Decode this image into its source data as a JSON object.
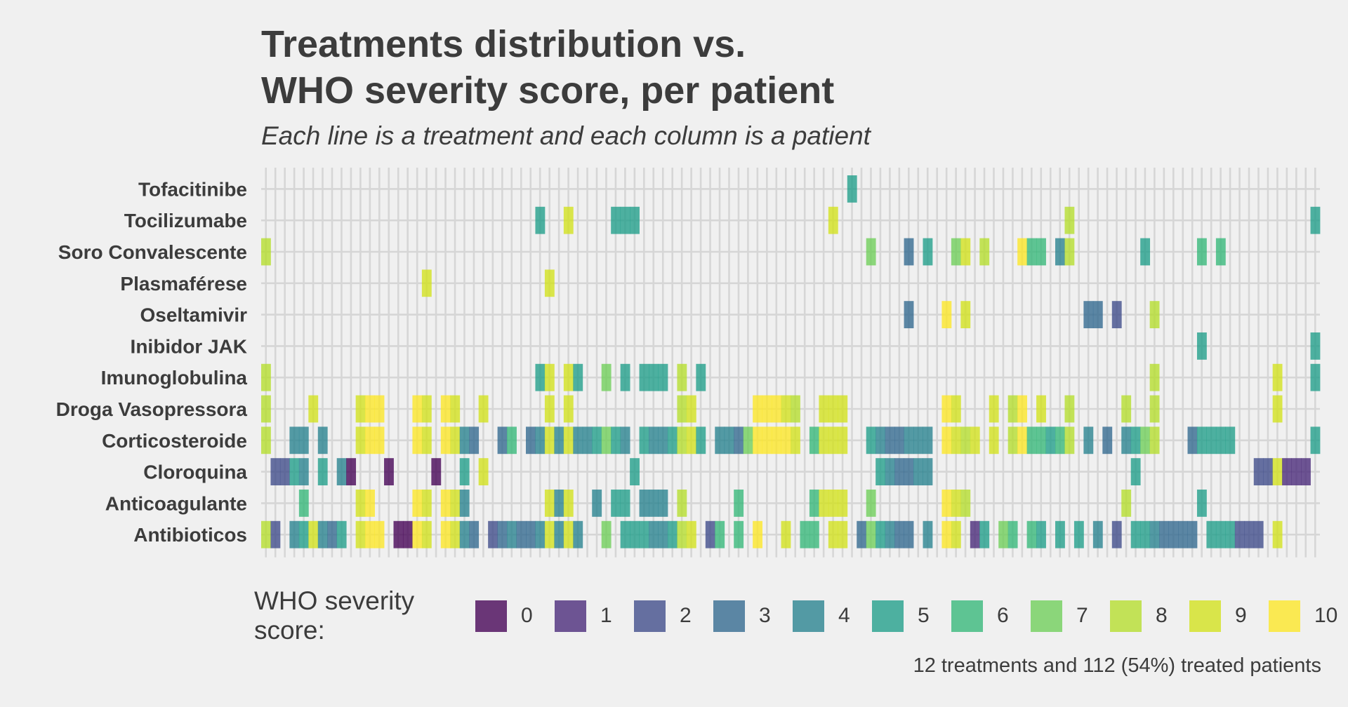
{
  "title_lines": [
    "Treatments distribution vs.",
    "WHO severity score, per patient"
  ],
  "subtitle": "Each line is a treatment and each column is a patient",
  "caption": "12 treatments and 112 (54%) treated patients",
  "legend": {
    "title": "WHO severity score:",
    "items": [
      {
        "label": "0",
        "color": "#440154"
      },
      {
        "label": "1",
        "color": "#482878"
      },
      {
        "label": "2",
        "color": "#3e4a89"
      },
      {
        "label": "3",
        "color": "#31688e"
      },
      {
        "label": "4",
        "color": "#26828e"
      },
      {
        "label": "5",
        "color": "#1f9e89"
      },
      {
        "label": "6",
        "color": "#35b779"
      },
      {
        "label": "7",
        "color": "#6ece58"
      },
      {
        "label": "8",
        "color": "#b5de2b"
      },
      {
        "label": "9",
        "color": "#d2e21b"
      },
      {
        "label": "10",
        "color": "#fde725"
      }
    ]
  },
  "chart_data": {
    "type": "heatmap",
    "title": "Treatments distribution vs. WHO severity score, per patient",
    "subtitle": "Each line is a treatment and each column is a patient",
    "patients": 112,
    "treatments": [
      "Tofacitinibe",
      "Tocilizumabe",
      "Soro Convalescente",
      "Plasmaférese",
      "Oseltamivir",
      "Inibidor JAK",
      "Imunoglobulina",
      "Droga Vasopressora",
      "Corticosteroide",
      "Cloroquina",
      "Anticoagulante",
      "Antibioticos"
    ],
    "color_scale": "WHO severity score 0-10",
    "cells": {
      "Tofacitinibe": [
        [
          62,
          5
        ]
      ],
      "Tocilizumabe": [
        [
          29,
          5
        ],
        [
          32,
          9
        ],
        [
          37,
          5
        ],
        [
          38,
          5
        ],
        [
          39,
          5
        ],
        [
          60,
          9
        ],
        [
          85,
          8
        ],
        [
          111,
          5
        ]
      ],
      "Soro Convalescente": [
        [
          0,
          8
        ],
        [
          64,
          7
        ],
        [
          68,
          3
        ],
        [
          70,
          5
        ],
        [
          73,
          7
        ],
        [
          74,
          9
        ],
        [
          76,
          8
        ],
        [
          80,
          10
        ],
        [
          81,
          6
        ],
        [
          82,
          6
        ],
        [
          84,
          4
        ],
        [
          85,
          8
        ],
        [
          93,
          5
        ],
        [
          99,
          6
        ],
        [
          101,
          6
        ]
      ],
      "Plasmaférese": [
        [
          17,
          9
        ],
        [
          30,
          9
        ]
      ],
      "Oseltamivir": [
        [
          68,
          3
        ],
        [
          72,
          10
        ],
        [
          74,
          9
        ],
        [
          87,
          3
        ],
        [
          88,
          3
        ],
        [
          90,
          2
        ],
        [
          94,
          8
        ]
      ],
      "Inibidor JAK": [
        [
          99,
          5
        ],
        [
          111,
          5
        ]
      ],
      "Imunoglobulina": [
        [
          0,
          8
        ],
        [
          29,
          5
        ],
        [
          30,
          9
        ],
        [
          32,
          9
        ],
        [
          33,
          5
        ],
        [
          36,
          7
        ],
        [
          38,
          5
        ],
        [
          40,
          5
        ],
        [
          41,
          5
        ],
        [
          42,
          5
        ],
        [
          44,
          8
        ],
        [
          46,
          5
        ],
        [
          94,
          8
        ],
        [
          107,
          9
        ],
        [
          111,
          5
        ]
      ],
      "Droga Vasopressora": [
        [
          0,
          8
        ],
        [
          5,
          9
        ],
        [
          10,
          9
        ],
        [
          11,
          10
        ],
        [
          12,
          10
        ],
        [
          16,
          10
        ],
        [
          17,
          9
        ],
        [
          19,
          10
        ],
        [
          20,
          9
        ],
        [
          23,
          9
        ],
        [
          30,
          9
        ],
        [
          32,
          9
        ],
        [
          44,
          8
        ],
        [
          45,
          9
        ],
        [
          52,
          10
        ],
        [
          53,
          10
        ],
        [
          54,
          10
        ],
        [
          55,
          9
        ],
        [
          56,
          8
        ],
        [
          59,
          9
        ],
        [
          60,
          9
        ],
        [
          61,
          9
        ],
        [
          72,
          10
        ],
        [
          73,
          9
        ],
        [
          77,
          9
        ],
        [
          79,
          8
        ],
        [
          80,
          10
        ],
        [
          82,
          9
        ],
        [
          85,
          8
        ],
        [
          91,
          8
        ],
        [
          94,
          8
        ],
        [
          107,
          9
        ]
      ],
      "Corticosteroide": [
        [
          0,
          8
        ],
        [
          3,
          4
        ],
        [
          4,
          4
        ],
        [
          6,
          4
        ],
        [
          10,
          9
        ],
        [
          11,
          10
        ],
        [
          12,
          10
        ],
        [
          16,
          10
        ],
        [
          17,
          9
        ],
        [
          19,
          10
        ],
        [
          20,
          9
        ],
        [
          21,
          4
        ],
        [
          22,
          3
        ],
        [
          25,
          3
        ],
        [
          26,
          6
        ],
        [
          28,
          3
        ],
        [
          29,
          4
        ],
        [
          30,
          9
        ],
        [
          31,
          4
        ],
        [
          32,
          9
        ],
        [
          33,
          4
        ],
        [
          34,
          4
        ],
        [
          35,
          5
        ],
        [
          36,
          7
        ],
        [
          37,
          5
        ],
        [
          38,
          4
        ],
        [
          40,
          5
        ],
        [
          41,
          4
        ],
        [
          42,
          4
        ],
        [
          43,
          5
        ],
        [
          44,
          8
        ],
        [
          45,
          9
        ],
        [
          46,
          5
        ],
        [
          48,
          4
        ],
        [
          49,
          4
        ],
        [
          50,
          3
        ],
        [
          51,
          7
        ],
        [
          52,
          10
        ],
        [
          53,
          10
        ],
        [
          54,
          10
        ],
        [
          55,
          10
        ],
        [
          56,
          9
        ],
        [
          58,
          6
        ],
        [
          59,
          9
        ],
        [
          60,
          9
        ],
        [
          61,
          9
        ],
        [
          64,
          5
        ],
        [
          65,
          4
        ],
        [
          66,
          3
        ],
        [
          67,
          3
        ],
        [
          68,
          4
        ],
        [
          69,
          4
        ],
        [
          70,
          4
        ],
        [
          72,
          10
        ],
        [
          73,
          9
        ],
        [
          74,
          8
        ],
        [
          75,
          9
        ],
        [
          77,
          9
        ],
        [
          79,
          8
        ],
        [
          80,
          10
        ],
        [
          81,
          6
        ],
        [
          82,
          6
        ],
        [
          83,
          5
        ],
        [
          84,
          6
        ],
        [
          85,
          8
        ],
        [
          87,
          4
        ],
        [
          89,
          3
        ],
        [
          91,
          4
        ],
        [
          92,
          5
        ],
        [
          93,
          7
        ],
        [
          94,
          8
        ],
        [
          98,
          3
        ],
        [
          99,
          5
        ],
        [
          100,
          5
        ],
        [
          101,
          5
        ],
        [
          102,
          5
        ],
        [
          111,
          5
        ]
      ],
      "Cloroquina": [
        [
          1,
          2
        ],
        [
          2,
          2
        ],
        [
          3,
          5
        ],
        [
          4,
          4
        ],
        [
          6,
          5
        ],
        [
          8,
          4
        ],
        [
          9,
          0
        ],
        [
          13,
          0
        ],
        [
          18,
          0
        ],
        [
          21,
          5
        ],
        [
          23,
          9
        ],
        [
          39,
          5
        ],
        [
          65,
          5
        ],
        [
          66,
          4
        ],
        [
          67,
          3
        ],
        [
          68,
          3
        ],
        [
          69,
          4
        ],
        [
          70,
          4
        ],
        [
          92,
          5
        ],
        [
          105,
          2
        ],
        [
          106,
          2
        ],
        [
          107,
          9
        ],
        [
          108,
          1
        ],
        [
          109,
          1
        ],
        [
          110,
          1
        ]
      ],
      "Anticoagulante": [
        [
          4,
          6
        ],
        [
          10,
          9
        ],
        [
          11,
          10
        ],
        [
          16,
          10
        ],
        [
          17,
          9
        ],
        [
          19,
          10
        ],
        [
          20,
          9
        ],
        [
          21,
          4
        ],
        [
          30,
          9
        ],
        [
          31,
          4
        ],
        [
          32,
          9
        ],
        [
          35,
          4
        ],
        [
          37,
          5
        ],
        [
          38,
          5
        ],
        [
          40,
          4
        ],
        [
          41,
          4
        ],
        [
          42,
          4
        ],
        [
          44,
          8
        ],
        [
          50,
          6
        ],
        [
          58,
          6
        ],
        [
          59,
          9
        ],
        [
          60,
          9
        ],
        [
          61,
          9
        ],
        [
          64,
          7
        ],
        [
          72,
          10
        ],
        [
          73,
          9
        ],
        [
          74,
          8
        ],
        [
          91,
          8
        ],
        [
          99,
          5
        ]
      ],
      "Antibioticos": [
        [
          0,
          8
        ],
        [
          1,
          2
        ],
        [
          3,
          4
        ],
        [
          4,
          5
        ],
        [
          5,
          9
        ],
        [
          6,
          4
        ],
        [
          7,
          3
        ],
        [
          8,
          5
        ],
        [
          10,
          9
        ],
        [
          11,
          10
        ],
        [
          12,
          10
        ],
        [
          14,
          0
        ],
        [
          15,
          0
        ],
        [
          16,
          10
        ],
        [
          17,
          9
        ],
        [
          19,
          10
        ],
        [
          20,
          9
        ],
        [
          21,
          4
        ],
        [
          22,
          3
        ],
        [
          24,
          2
        ],
        [
          25,
          3
        ],
        [
          26,
          4
        ],
        [
          27,
          3
        ],
        [
          28,
          3
        ],
        [
          29,
          4
        ],
        [
          30,
          9
        ],
        [
          31,
          4
        ],
        [
          32,
          9
        ],
        [
          33,
          4
        ],
        [
          36,
          7
        ],
        [
          38,
          5
        ],
        [
          39,
          5
        ],
        [
          40,
          5
        ],
        [
          41,
          4
        ],
        [
          42,
          4
        ],
        [
          43,
          5
        ],
        [
          44,
          8
        ],
        [
          45,
          9
        ],
        [
          47,
          2
        ],
        [
          48,
          6
        ],
        [
          50,
          6
        ],
        [
          52,
          10
        ],
        [
          55,
          9
        ],
        [
          57,
          6
        ],
        [
          58,
          6
        ],
        [
          60,
          9
        ],
        [
          61,
          9
        ],
        [
          63,
          3
        ],
        [
          64,
          7
        ],
        [
          65,
          5
        ],
        [
          66,
          4
        ],
        [
          67,
          3
        ],
        [
          68,
          3
        ],
        [
          70,
          4
        ],
        [
          72,
          10
        ],
        [
          73,
          9
        ],
        [
          75,
          1
        ],
        [
          76,
          5
        ],
        [
          78,
          7
        ],
        [
          79,
          6
        ],
        [
          81,
          6
        ],
        [
          82,
          5
        ],
        [
          84,
          5
        ],
        [
          86,
          5
        ],
        [
          88,
          4
        ],
        [
          90,
          2
        ],
        [
          92,
          5
        ],
        [
          93,
          5
        ],
        [
          94,
          4
        ],
        [
          95,
          3
        ],
        [
          96,
          3
        ],
        [
          97,
          3
        ],
        [
          98,
          3
        ],
        [
          100,
          5
        ],
        [
          101,
          5
        ],
        [
          102,
          5
        ],
        [
          103,
          2
        ],
        [
          104,
          2
        ],
        [
          105,
          2
        ],
        [
          107,
          9
        ]
      ]
    }
  }
}
